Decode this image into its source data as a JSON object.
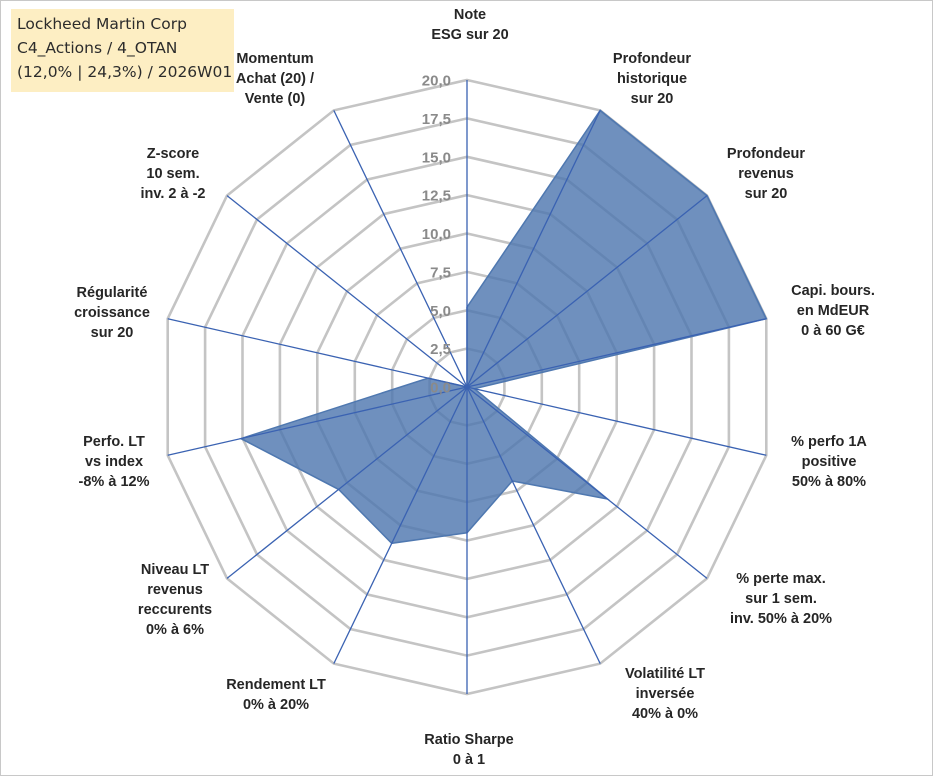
{
  "info_box": {
    "line1": "Lockheed Martin Corp",
    "line2": "C4_Actions / 4_OTAN",
    "line3": "(12,0% | 24,3%) / 2026W01"
  },
  "chart_data": {
    "type": "radar",
    "title": "Lockheed Martin Corp",
    "rlim": [
      0,
      20
    ],
    "ticks": [
      0,
      2.5,
      5,
      7.5,
      10,
      12.5,
      15,
      17.5,
      20
    ],
    "tick_labels": [
      "0,0",
      "2,5",
      "5,0",
      "7,5",
      "10,0",
      "12,5",
      "15,0",
      "17,5",
      "20,0"
    ],
    "axes": [
      [
        "Note",
        "ESG sur 20"
      ],
      [
        "Profondeur",
        "historique",
        "sur 20"
      ],
      [
        "Profondeur",
        "revenus",
        "sur 20"
      ],
      [
        "Capi. bours.",
        "en MdEUR",
        "0 à 60 G€"
      ],
      [
        "% perfo 1A",
        "positive",
        "50% à 80%"
      ],
      [
        "% perte max.",
        "sur 1 sem.",
        "inv. 50% à 20%"
      ],
      [
        "Volatilité LT",
        "inversée",
        "40% à 0%"
      ],
      [
        "Ratio Sharpe",
        "0 à 1"
      ],
      [
        "Rendement LT",
        "0% à 20%"
      ],
      [
        "Niveau LT",
        "revenus",
        "reccurents",
        "0% à 6%"
      ],
      [
        "Perfo. LT",
        "vs index",
        "-8% à 12%"
      ],
      [
        "Régularité",
        "croissance",
        "sur 20"
      ],
      [
        "Z-score",
        "10 sem.",
        "inv. 2 à -2"
      ],
      [
        "Momentum",
        "Achat (20) /",
        "Vente (0)"
      ]
    ],
    "series": [
      {
        "name": "Lockheed Martin Corp",
        "color": "#4f78b0",
        "values": [
          5.2,
          20,
          20,
          20,
          0.5,
          11.7,
          6.8,
          9.5,
          11.3,
          10.7,
          15.1,
          2.6,
          0,
          0
        ]
      }
    ],
    "grid_color": "#c4c4c4",
    "spoke_color": "#3a62b2"
  }
}
